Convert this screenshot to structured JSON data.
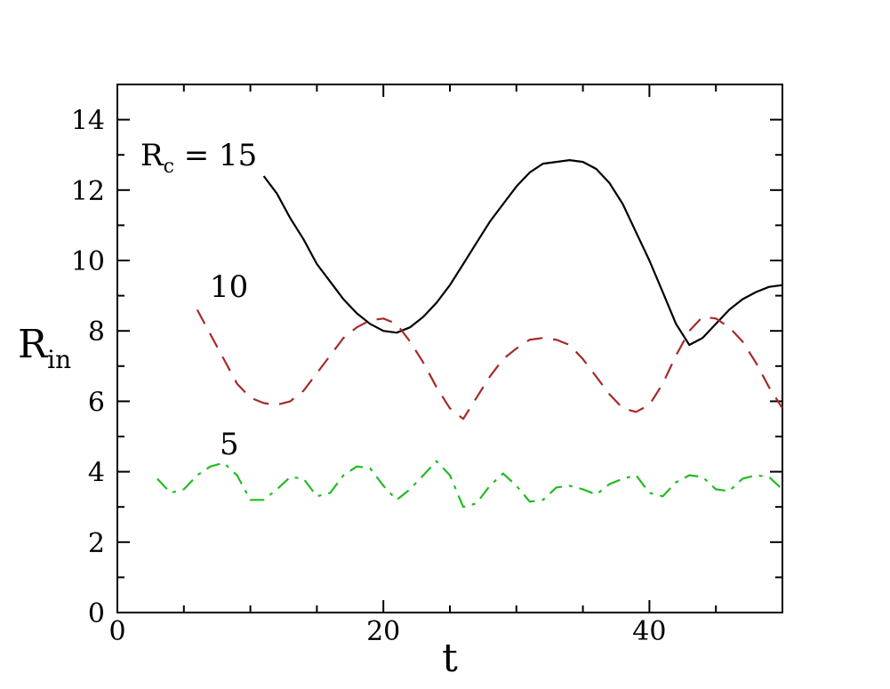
{
  "chart_data": {
    "type": "line",
    "xlabel": "t",
    "ylabel": {
      "main": "R",
      "sub": "in"
    },
    "xlim": [
      0,
      50
    ],
    "ylim": [
      0,
      15
    ],
    "x_ticks": [
      0,
      20,
      40
    ],
    "y_ticks": [
      0,
      2,
      4,
      6,
      8,
      10,
      12,
      14
    ],
    "grid": false,
    "series": [
      {
        "label_main": "R",
        "label_sub": "c",
        "label_rest": " = 15",
        "color": "#000000",
        "style": "solid",
        "points": [
          [
            11,
            12.4
          ],
          [
            12,
            11.9
          ],
          [
            13,
            11.2
          ],
          [
            14,
            10.6
          ],
          [
            15,
            9.9
          ],
          [
            16,
            9.4
          ],
          [
            17,
            8.9
          ],
          [
            18,
            8.5
          ],
          [
            19,
            8.2
          ],
          [
            20,
            8.0
          ],
          [
            21,
            7.95
          ],
          [
            22,
            8.1
          ],
          [
            23,
            8.4
          ],
          [
            24,
            8.8
          ],
          [
            25,
            9.3
          ],
          [
            26,
            9.9
          ],
          [
            27,
            10.5
          ],
          [
            28,
            11.1
          ],
          [
            29,
            11.6
          ],
          [
            30,
            12.1
          ],
          [
            31,
            12.5
          ],
          [
            32,
            12.75
          ],
          [
            33,
            12.8
          ],
          [
            34,
            12.85
          ],
          [
            35,
            12.8
          ],
          [
            36,
            12.6
          ],
          [
            37,
            12.2
          ],
          [
            38,
            11.6
          ],
          [
            39,
            10.8
          ],
          [
            40,
            10.0
          ],
          [
            41,
            9.1
          ],
          [
            42,
            8.2
          ],
          [
            43,
            7.6
          ],
          [
            44,
            7.8
          ],
          [
            45,
            8.2
          ],
          [
            46,
            8.6
          ],
          [
            47,
            8.9
          ],
          [
            48,
            9.1
          ],
          [
            49,
            9.25
          ],
          [
            50,
            9.3
          ]
        ]
      },
      {
        "label_main": "10",
        "color": "#a52a2a",
        "style": "dashed",
        "points": [
          [
            6,
            8.6
          ],
          [
            7,
            7.9
          ],
          [
            8,
            7.2
          ],
          [
            9,
            6.5
          ],
          [
            10,
            6.1
          ],
          [
            11,
            5.95
          ],
          [
            12,
            5.9
          ],
          [
            13,
            6.0
          ],
          [
            14,
            6.3
          ],
          [
            15,
            6.8
          ],
          [
            16,
            7.3
          ],
          [
            17,
            7.8
          ],
          [
            18,
            8.1
          ],
          [
            19,
            8.3
          ],
          [
            20,
            8.35
          ],
          [
            21,
            8.2
          ],
          [
            22,
            7.7
          ],
          [
            23,
            7.1
          ],
          [
            24,
            6.4
          ],
          [
            25,
            5.8
          ],
          [
            26,
            5.5
          ],
          [
            27,
            6.1
          ],
          [
            28,
            6.7
          ],
          [
            29,
            7.2
          ],
          [
            30,
            7.5
          ],
          [
            31,
            7.75
          ],
          [
            32,
            7.8
          ],
          [
            33,
            7.75
          ],
          [
            34,
            7.6
          ],
          [
            35,
            7.2
          ],
          [
            36,
            6.7
          ],
          [
            37,
            6.2
          ],
          [
            38,
            5.8
          ],
          [
            39,
            5.7
          ],
          [
            40,
            5.9
          ],
          [
            41,
            6.5
          ],
          [
            42,
            7.3
          ],
          [
            43,
            8.0
          ],
          [
            44,
            8.4
          ],
          [
            45,
            8.35
          ],
          [
            46,
            8.1
          ],
          [
            47,
            7.7
          ],
          [
            48,
            7.1
          ],
          [
            49,
            6.4
          ],
          [
            50,
            5.8
          ]
        ]
      },
      {
        "label_main": "5",
        "color": "#22bb22",
        "style": "dashdot",
        "points": [
          [
            3,
            3.8
          ],
          [
            4,
            3.4
          ],
          [
            5,
            3.5
          ],
          [
            6,
            3.9
          ],
          [
            7,
            4.15
          ],
          [
            8,
            4.25
          ],
          [
            9,
            3.9
          ],
          [
            10,
            3.2
          ],
          [
            11,
            3.2
          ],
          [
            12,
            3.5
          ],
          [
            13,
            3.85
          ],
          [
            14,
            3.8
          ],
          [
            15,
            3.3
          ],
          [
            16,
            3.4
          ],
          [
            17,
            3.9
          ],
          [
            18,
            4.15
          ],
          [
            19,
            4.1
          ],
          [
            20,
            3.6
          ],
          [
            21,
            3.2
          ],
          [
            22,
            3.5
          ],
          [
            23,
            3.9
          ],
          [
            24,
            4.3
          ],
          [
            25,
            3.9
          ],
          [
            26,
            3.0
          ],
          [
            27,
            3.1
          ],
          [
            28,
            3.6
          ],
          [
            29,
            3.95
          ],
          [
            30,
            3.6
          ],
          [
            31,
            3.15
          ],
          [
            32,
            3.2
          ],
          [
            33,
            3.55
          ],
          [
            34,
            3.6
          ],
          [
            35,
            3.5
          ],
          [
            36,
            3.35
          ],
          [
            37,
            3.65
          ],
          [
            38,
            3.8
          ],
          [
            39,
            3.9
          ],
          [
            40,
            3.4
          ],
          [
            41,
            3.3
          ],
          [
            42,
            3.7
          ],
          [
            43,
            3.9
          ],
          [
            44,
            3.85
          ],
          [
            45,
            3.5
          ],
          [
            46,
            3.45
          ],
          [
            47,
            3.8
          ],
          [
            48,
            3.9
          ],
          [
            49,
            3.85
          ],
          [
            50,
            3.5
          ]
        ]
      }
    ]
  }
}
